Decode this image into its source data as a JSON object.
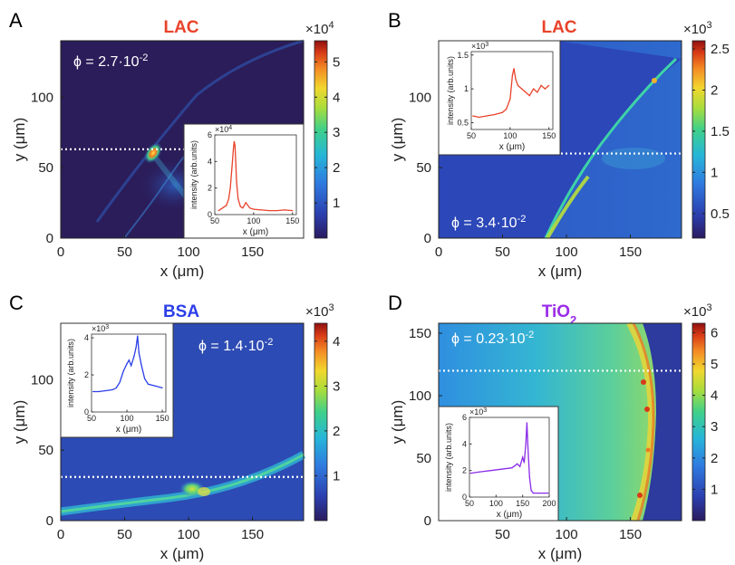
{
  "figure": {
    "panels": [
      {
        "letter": "A",
        "title": "LAC",
        "title_color": "#e8422a",
        "phi_text": "ϕ = 2.7·10",
        "phi_exp": "-2",
        "colorbar": {
          "multiplier_base": "×10",
          "multiplier_exp": "4",
          "ticks": [
            1,
            2,
            3,
            4,
            5
          ],
          "range": [
            0,
            5.6
          ]
        },
        "chart_data": {
          "type": "heatmap",
          "xlabel": "x (μm)",
          "ylabel": "y (μm)",
          "xlim": [
            0,
            190
          ],
          "ylim": [
            0,
            140
          ],
          "xticks": [
            0,
            50,
            100,
            150
          ],
          "yticks": [
            0,
            50,
            100
          ],
          "cut_y": 63,
          "features": "bright spot near (75, 60) with diagonal streak toward lower right"
        },
        "inset": {
          "xlabel": "x (μm)",
          "ylabel": "intensity (arb.units)",
          "multiplier_base": "×10",
          "multiplier_exp": "4",
          "line_color": "#e8422a",
          "chart_data": {
            "type": "line",
            "xlim": [
              50,
              155
            ],
            "ylim": [
              0,
              6
            ],
            "xticks": [
              50,
              100,
              150
            ],
            "yticks": [
              0,
              2,
              4,
              6
            ],
            "x": [
              55,
              60,
              65,
              68,
              70,
              72,
              74,
              75,
              76,
              77,
              78,
              80,
              83,
              86,
              90,
              95,
              100,
              110,
              120,
              130,
              140,
              150
            ],
            "y": [
              0.3,
              0.5,
              0.7,
              1.2,
              2.0,
              3.5,
              5.0,
              5.5,
              5.2,
              4.0,
              2.5,
              1.2,
              0.6,
              0.5,
              0.9,
              0.5,
              0.4,
              0.35,
              0.3,
              0.3,
              0.35,
              0.3
            ]
          }
        }
      },
      {
        "letter": "B",
        "title": "LAC",
        "title_color": "#e8422a",
        "phi_text": "ϕ = 3.4·10",
        "phi_exp": "-2",
        "colorbar": {
          "multiplier_base": "×10",
          "multiplier_exp": "3",
          "ticks": [
            0.5,
            1,
            1.5,
            2,
            2.5
          ],
          "range": [
            0.2,
            2.6
          ]
        },
        "chart_data": {
          "type": "heatmap",
          "xlabel": "x (μm)",
          "ylabel": "y (μm)",
          "xlim": [
            0,
            190
          ],
          "ylim": [
            0,
            140
          ],
          "xticks": [
            0,
            50,
            100,
            150
          ],
          "yticks": [
            0,
            50,
            100
          ],
          "cut_y": 60,
          "features": "bright arc from (75, 0) curving up to (155, 115)"
        },
        "inset": {
          "xlabel": "x (μm)",
          "ylabel": "intensity (arb.units)",
          "multiplier_base": "×10",
          "multiplier_exp": "3",
          "line_color": "#e8422a",
          "chart_data": {
            "type": "line",
            "xlim": [
              50,
              155
            ],
            "ylim": [
              0.4,
              1.55
            ],
            "xticks": [
              50,
              100,
              150
            ],
            "yticks": [
              0.5,
              1,
              1.5
            ],
            "x": [
              52,
              60,
              70,
              80,
              90,
              95,
              100,
              103,
              105,
              107,
              110,
              115,
              120,
              125,
              130,
              135,
              140,
              145,
              150
            ],
            "y": [
              0.6,
              0.58,
              0.6,
              0.62,
              0.65,
              0.7,
              0.85,
              1.2,
              1.3,
              1.15,
              1.05,
              1.0,
              0.95,
              0.9,
              1.0,
              0.95,
              1.05,
              1.0,
              1.05
            ]
          }
        }
      },
      {
        "letter": "C",
        "title": "BSA",
        "title_color": "#2b3ee8",
        "phi_text": "ϕ = 1.4·10",
        "phi_exp": "-2",
        "colorbar": {
          "multiplier_base": "×10",
          "multiplier_exp": "3",
          "ticks": [
            1,
            2,
            3,
            4
          ],
          "range": [
            0,
            4.4
          ]
        },
        "chart_data": {
          "type": "heatmap",
          "xlabel": "x (μm)",
          "ylabel": "y (μm)",
          "xlim": [
            0,
            190
          ],
          "ylim": [
            0,
            140
          ],
          "xticks": [
            0,
            50,
            100,
            150
          ],
          "yticks": [
            0,
            50,
            100
          ],
          "cut_y": 31,
          "features": "arc along the bottom with bright blob near (105, 32)"
        },
        "inset": {
          "xlabel": "x (μm)",
          "ylabel": "intensity (arb.units)",
          "multiplier_base": "×10",
          "multiplier_exp": "3",
          "line_color": "#2b3ee8",
          "chart_data": {
            "type": "line",
            "xlim": [
              50,
              155
            ],
            "ylim": [
              0,
              4.2
            ],
            "xticks": [
              50,
              100,
              150
            ],
            "yticks": [
              0,
              2,
              4
            ],
            "x": [
              52,
              60,
              70,
              80,
              85,
              90,
              95,
              100,
              103,
              106,
              110,
              113,
              115,
              117,
              120,
              125,
              130,
              140,
              150
            ],
            "y": [
              1.1,
              1.1,
              1.15,
              1.2,
              1.3,
              1.6,
              2.2,
              2.6,
              2.8,
              2.5,
              3.0,
              3.5,
              4.1,
              3.2,
              2.6,
              1.8,
              1.5,
              1.4,
              1.3
            ]
          }
        }
      },
      {
        "letter": "D",
        "title": "TiO",
        "title_sub": "2",
        "title_color": "#9b2be8",
        "phi_text": "ϕ = 0.23·10",
        "phi_exp": "-2",
        "colorbar": {
          "multiplier_base": "×10",
          "multiplier_exp": "3",
          "ticks": [
            1,
            2,
            3,
            4,
            5,
            6
          ],
          "range": [
            0,
            6.3
          ]
        },
        "chart_data": {
          "type": "heatmap",
          "xlabel": "x (μm)",
          "ylabel": "y (μm)",
          "xlim": [
            0,
            190
          ],
          "ylim": [
            0,
            158
          ],
          "xticks": [
            50,
            100,
            150
          ],
          "yticks": [
            0,
            50,
            100,
            150
          ],
          "cut_y": 120,
          "features": "bright vertical boundary near x=150-165 with green region to the left"
        },
        "inset": {
          "xlabel": "x (μm)",
          "ylabel": "intensity (arb.units)",
          "multiplier_base": "×10",
          "multiplier_exp": "3",
          "line_color": "#8a2be8",
          "chart_data": {
            "type": "line",
            "xlim": [
              50,
              200
            ],
            "ylim": [
              0,
              6
            ],
            "xticks": [
              50,
              100,
              150,
              200
            ],
            "yticks": [
              0,
              2,
              4,
              6
            ],
            "x": [
              52,
              70,
              90,
              110,
              130,
              140,
              145,
              150,
              153,
              156,
              158,
              160,
              163,
              166,
              170,
              180,
              190,
              198
            ],
            "y": [
              1.8,
              1.9,
              2.0,
              2.1,
              2.2,
              2.5,
              2.3,
              3.0,
              2.6,
              4.0,
              5.6,
              3.8,
              1.5,
              0.5,
              0.3,
              0.3,
              0.3,
              0.3
            ]
          }
        }
      }
    ]
  }
}
